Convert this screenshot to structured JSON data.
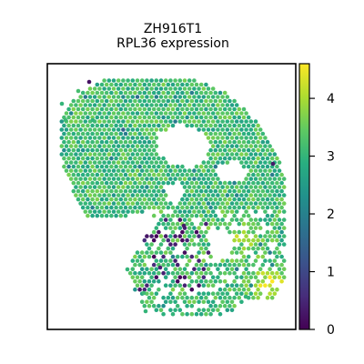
{
  "title": {
    "line1": "ZH916T1",
    "line2": "RPL36 expression"
  },
  "chart_data": {
    "type": "scatter",
    "title": "ZH916T1\nRPL36 expression",
    "xlabel": "",
    "ylabel": "",
    "grid": false,
    "axes_ticks": false,
    "colormap": "viridis",
    "colorbar": {
      "label": "",
      "range": [
        0,
        4.6
      ],
      "ticks": [
        0,
        1,
        2,
        3,
        4
      ],
      "tick_labels": [
        "0",
        "1",
        "2",
        "3",
        "4"
      ]
    },
    "encoding": "hexagonal spatial spots of the tissue section colored by RPL36 expression; most spots in the 2.5-3.8 range, bright yellow (4-4.5) hotspots near the lower right, scattered dark purple (0-0.5) spots in the lower-middle region"
  },
  "colors": {
    "low": "#440154",
    "high": "#fde725",
    "background": "#ffffff",
    "axes": "#000000"
  }
}
